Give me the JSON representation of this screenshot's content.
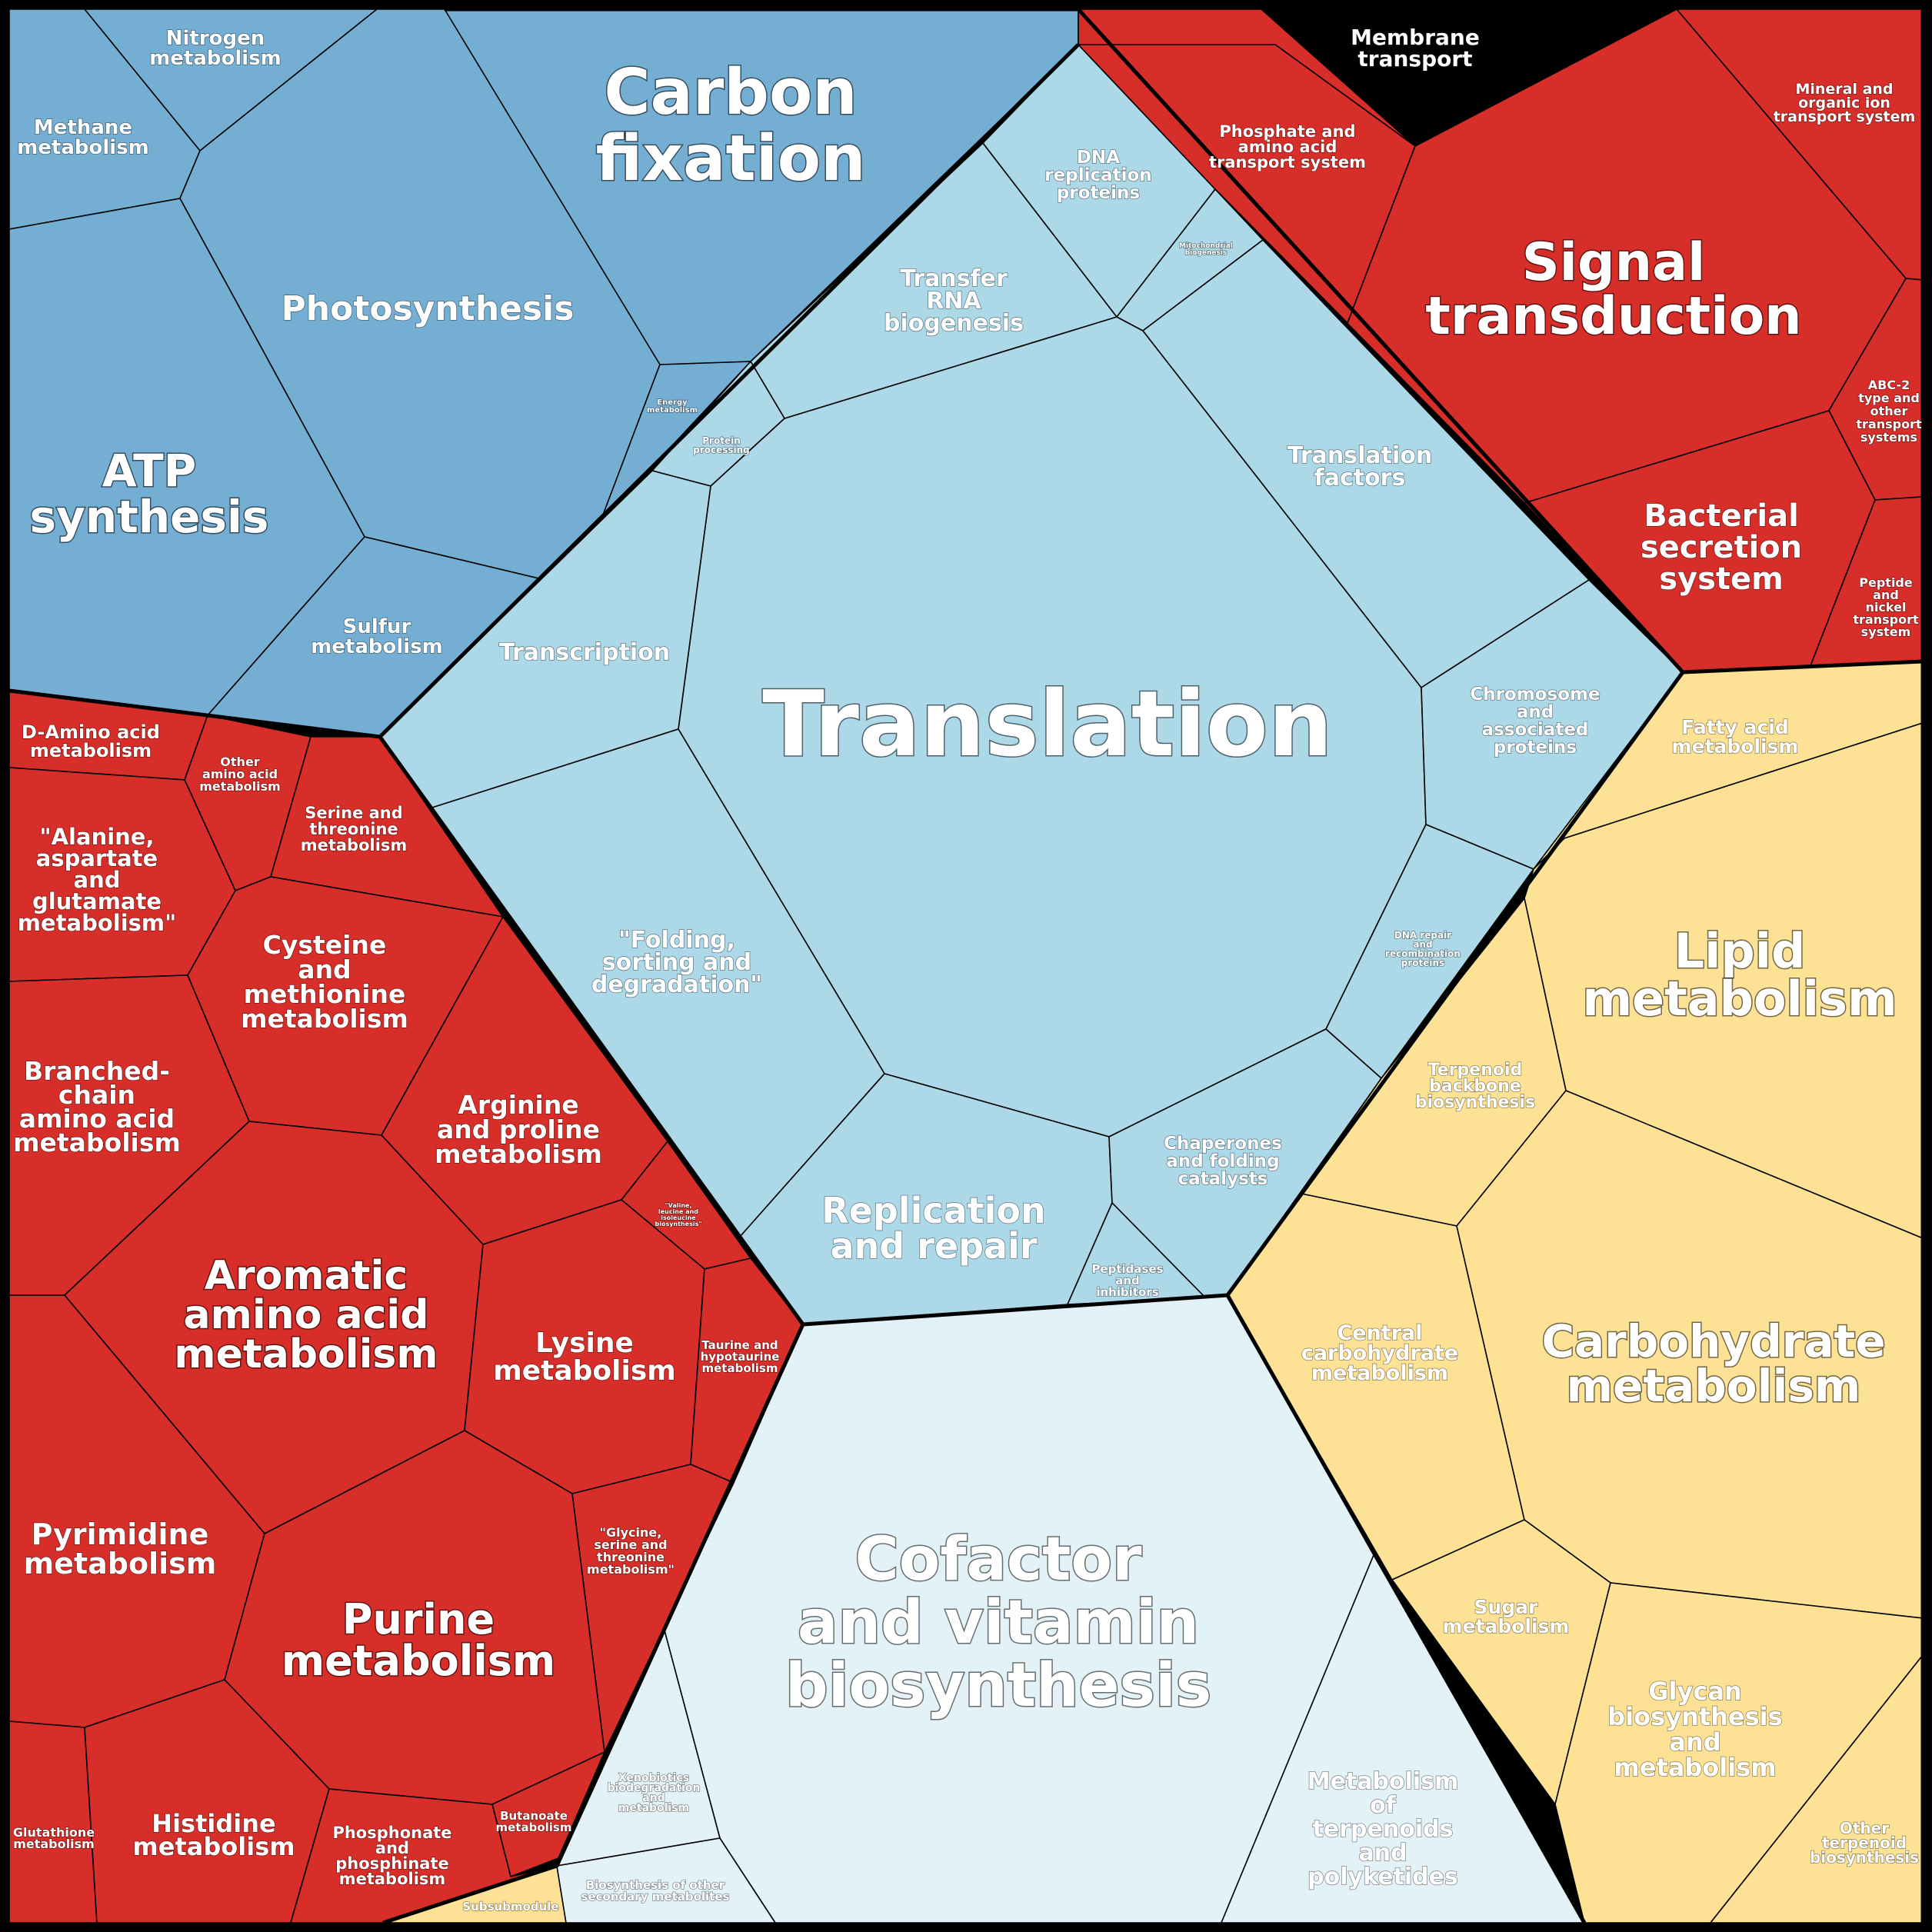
{
  "colors": {
    "energy": "#75aed3",
    "genetic": "#acd8e8",
    "aminoacid": "#d72e29",
    "environmental": "#d72e29",
    "lipid_carb": "#fde296",
    "cofactor": "#e2f2f7",
    "border": "#000000",
    "text": "#ffffff"
  },
  "groups": {
    "energy": [
      "Carbon fixation",
      "Photosynthesis",
      "ATP synthesis",
      "Nitrogen metabolism",
      "Methane metabolism",
      "Sulfur metabolism",
      "Energy metabolism"
    ],
    "genetic": [
      "Translation",
      "Transfer RNA biogenesis",
      "DNA replication proteins",
      "Mitochondrial biogenesis",
      "Translation factors",
      "Protein processing",
      "Transcription",
      "\"Folding, sorting and degradation\"",
      "Chromosome and associated proteins",
      "DNA repair and recombination proteins",
      "Replication and repair",
      "Chaperones and folding catalysts",
      "Peptidases and inhibitors"
    ],
    "environmental": [
      "Signal transduction",
      "Membrane transport",
      "Phosphate and amino acid transport system",
      "Mineral and organic ion transport system",
      "ABC-2 type and other transport systems",
      "Bacterial secretion system",
      "Peptide and nickel transport system"
    ]
  },
  "labels": {
    "carbon_fixation": [
      "Carbon",
      "fixation"
    ],
    "nitrogen": [
      "Nitrogen",
      "metabolism"
    ],
    "methane": [
      "Methane",
      "metabolism"
    ],
    "photosynthesis": [
      "Photosynthesis"
    ],
    "atp_synthesis": [
      "ATP",
      "synthesis"
    ],
    "sulfur": [
      "Sulfur",
      "metabolism"
    ],
    "energy_metabolism": [
      "Energy",
      "metabolism"
    ],
    "protein_processing": [
      "Protein",
      "processing"
    ],
    "dna_replication": [
      "DNA",
      "replication",
      "proteins"
    ],
    "mito_biogenesis": [
      "Mitochondrial",
      "biogenesis"
    ],
    "trna": [
      "Transfer",
      "RNA",
      "biogenesis"
    ],
    "translation_factors": [
      "Translation",
      "factors"
    ],
    "transcription": [
      "Transcription"
    ],
    "translation": [
      "Translation"
    ],
    "chromosome": [
      "Chromosome",
      "and",
      "associated",
      "proteins"
    ],
    "dna_repair": [
      "DNA repair",
      "and",
      "recombination",
      "proteins"
    ],
    "folding": [
      "\"Folding,",
      "sorting and",
      "degradation\""
    ],
    "replication_repair": [
      "Replication",
      "and repair"
    ],
    "chaperones": [
      "Chaperones",
      "and folding",
      "catalysts"
    ],
    "peptidases": [
      "Peptidases",
      "and",
      "inhibitors"
    ],
    "membrane_transport": [
      "Membrane",
      "transport"
    ],
    "phosphate_transport": [
      "Phosphate and",
      "amino acid",
      "transport system"
    ],
    "mineral_transport": [
      "Mineral and",
      "organic ion",
      "transport system"
    ],
    "signal_transduction": [
      "Signal",
      "transduction"
    ],
    "abc2": [
      "ABC-2",
      "type and",
      "other",
      "transport",
      "systems"
    ],
    "bacterial_secretion": [
      "Bacterial",
      "secretion",
      "system"
    ],
    "peptide_nickel": [
      "Peptide",
      "and",
      "nickel",
      "transport",
      "system"
    ],
    "fatty_acid": [
      "Fatty acid",
      "metabolism"
    ],
    "lipid": [
      "Lipid",
      "metabolism"
    ],
    "terpenoid_backbone": [
      "Terpenoid",
      "backbone",
      "biosynthesis"
    ],
    "central_carb": [
      "Central",
      "carbohydrate",
      "metabolism"
    ],
    "carbohydrate": [
      "Carbohydrate",
      "metabolism"
    ],
    "sugar": [
      "Sugar",
      "metabolism"
    ],
    "glycan": [
      "Glycan",
      "biosynthesis",
      "and",
      "metabolism"
    ],
    "other_terpenoid": [
      "Other",
      "terpenoid",
      "biosynthesis"
    ],
    "cofactor": [
      "Cofactor",
      "and vitamin",
      "biosynthesis"
    ],
    "terpenoids_polyketides": [
      "Metabolism",
      "of",
      "terpenoids",
      "and",
      "polyketides"
    ],
    "xenobiotics": [
      "Xenobiotics",
      "biodegradation",
      "and",
      "metabolism"
    ],
    "secondary_metabolites": [
      "Biosynthesis of other",
      "secondary metabolites"
    ],
    "subsubmodule": [
      "Subsubmodule"
    ],
    "d_amino": [
      "D-Amino acid",
      "metabolism"
    ],
    "other_amino": [
      "Other",
      "amino acid",
      "metabolism"
    ],
    "serine_threonine": [
      "Serine and",
      "threonine",
      "metabolism"
    ],
    "alanine": [
      "\"Alanine,",
      "aspartate",
      "and",
      "glutamate",
      "metabolism\""
    ],
    "cysteine": [
      "Cysteine",
      "and",
      "methionine",
      "metabolism"
    ],
    "branched": [
      "Branched-",
      "chain",
      "amino acid",
      "metabolism"
    ],
    "arginine": [
      "Arginine",
      "and proline",
      "metabolism"
    ],
    "valine": [
      "\"Valine,",
      "leucine and",
      "isoleucine",
      "biosynthesis\""
    ],
    "aromatic": [
      "Aromatic",
      "amino acid",
      "metabolism"
    ],
    "lysine": [
      "Lysine",
      "metabolism"
    ],
    "taurine": [
      "Taurine and",
      "hypotaurine",
      "metabolism"
    ],
    "glycine": [
      "\"Glycine,",
      "serine and",
      "threonine",
      "metabolism\""
    ],
    "pyrimidine": [
      "Pyrimidine",
      "metabolism"
    ],
    "purine": [
      "Purine",
      "metabolism"
    ],
    "butanoate": [
      "Butanoate",
      "metabolism"
    ],
    "glutathione": [
      "Glutathione",
      "metabolism"
    ],
    "histidine": [
      "Histidine",
      "metabolism"
    ],
    "phosphonate": [
      "Phosphonate",
      "and",
      "phosphinate",
      "metabolism"
    ]
  }
}
